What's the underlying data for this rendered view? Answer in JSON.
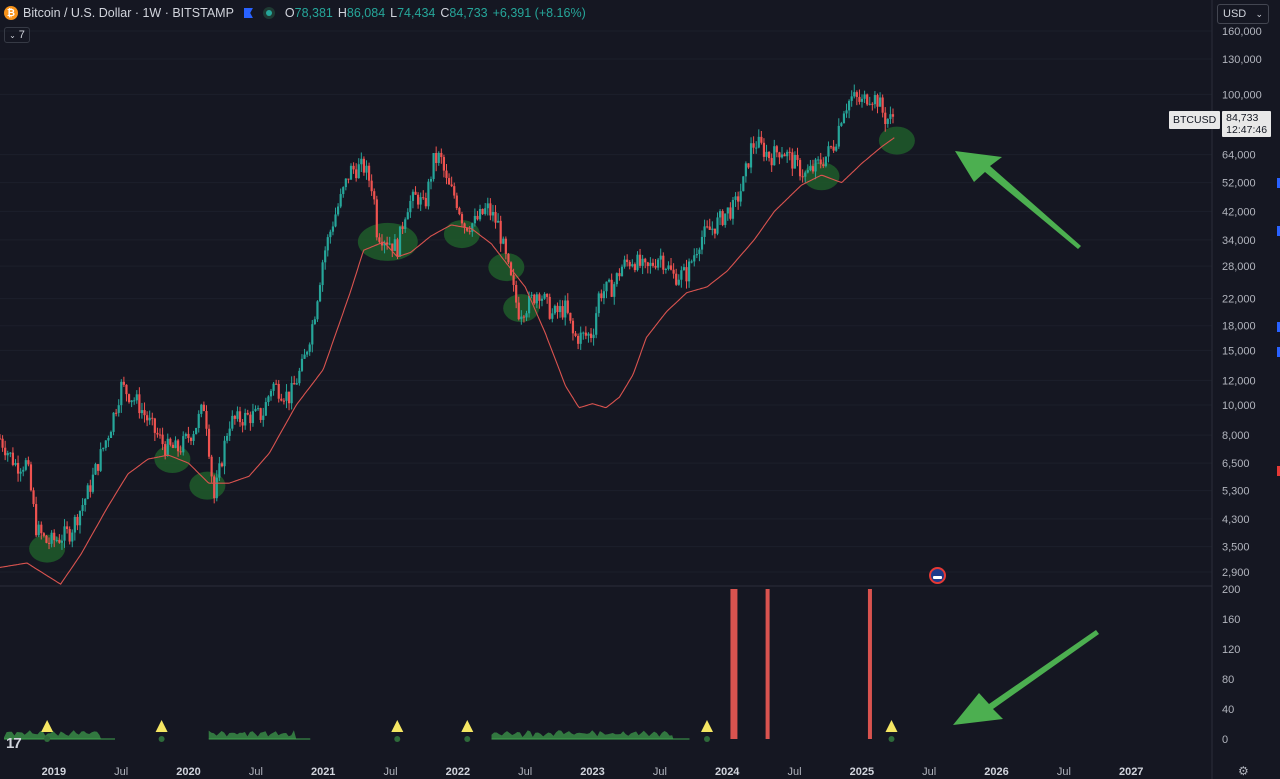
{
  "header": {
    "symbol_icon": "bitcoin-icon",
    "title": "Bitcoin / U.S. Dollar · 1W · BITSTAMP",
    "open_label": "O",
    "open": "78,381",
    "high_label": "H",
    "high": "86,084",
    "low_label": "L",
    "low": "74,434",
    "close_label": "C",
    "close": "84,733",
    "change": "+6,391 (+8.16%)"
  },
  "indicator_toggle": {
    "count": "7",
    "icon": "chevron-down-icon"
  },
  "currency_button": {
    "label": "USD",
    "icon": "chevron-down-icon"
  },
  "last_price_tag": {
    "symbol": "BTCUSD",
    "price": "84,733",
    "countdown": "12:47:46"
  },
  "colors": {
    "background": "#151722",
    "up": "#26a69a",
    "down": "#ef5350",
    "ma": "#d9534f",
    "highlight": "#1f5c2a",
    "arrow": "#4caf50",
    "marker": "#f5e663",
    "spike": "#d9534f",
    "osc": "#3fa34d"
  },
  "chart_data": [
    {
      "type": "candlestick",
      "title": "Bitcoin / U.S. Dollar · 1W · BITSTAMP",
      "y_scale": "log",
      "ylim": [
        2600,
        175000
      ],
      "y_ticks": [
        2900,
        3500,
        4300,
        5300,
        6500,
        8000,
        10000,
        12000,
        15000,
        18000,
        22000,
        28000,
        34000,
        42000,
        52000,
        64000,
        100000,
        130000,
        160000
      ],
      "y_tick_labels": [
        "2,900",
        "3,500",
        "4,300",
        "5,300",
        "6,500",
        "8,000",
        "10,000",
        "12,000",
        "15,000",
        "18,000",
        "22,000",
        "28,000",
        "34,000",
        "42,000",
        "52,000",
        "64,000",
        "100,000",
        "130,000",
        "160,000"
      ],
      "x_ticks": [
        "2019",
        "Jul",
        "2020",
        "Jul",
        "2021",
        "Jul",
        "2022",
        "Jul",
        "2023",
        "Jul",
        "2024",
        "Jul",
        "2025",
        "Jul",
        "2026",
        "Jul",
        "2027"
      ],
      "x_year_flags": [
        true,
        false,
        true,
        false,
        true,
        false,
        true,
        false,
        true,
        false,
        true,
        false,
        true,
        false,
        true,
        false,
        true
      ],
      "x_values": [
        2019.0,
        2019.5,
        2020.0,
        2020.5,
        2021.0,
        2021.5,
        2022.0,
        2022.5,
        2023.0,
        2023.5,
        2024.0,
        2024.5,
        2025.0,
        2025.5,
        2026.0,
        2026.5,
        2027.0
      ],
      "xlim": [
        2018.6,
        2027.6
      ],
      "price_anchors": [
        [
          2018.6,
          7800
        ],
        [
          2018.72,
          6400
        ],
        [
          2018.8,
          6500
        ],
        [
          2018.87,
          4000
        ],
        [
          2018.95,
          3600
        ],
        [
          2019.02,
          3700
        ],
        [
          2019.12,
          3900
        ],
        [
          2019.25,
          5200
        ],
        [
          2019.42,
          8500
        ],
        [
          2019.5,
          11500
        ],
        [
          2019.62,
          10200
        ],
        [
          2019.75,
          8200
        ],
        [
          2019.83,
          7300
        ],
        [
          2019.93,
          7200
        ],
        [
          2020.05,
          8500
        ],
        [
          2020.12,
          10100
        ],
        [
          2020.19,
          5000
        ],
        [
          2020.3,
          8800
        ],
        [
          2020.45,
          9200
        ],
        [
          2020.55,
          9300
        ],
        [
          2020.62,
          11700
        ],
        [
          2020.75,
          10600
        ],
        [
          2020.85,
          13500
        ],
        [
          2020.93,
          19000
        ],
        [
          2021.0,
          30000
        ],
        [
          2021.08,
          40000
        ],
        [
          2021.13,
          46000
        ],
        [
          2021.2,
          57000
        ],
        [
          2021.3,
          58500
        ],
        [
          2021.37,
          50000
        ],
        [
          2021.4,
          36000
        ],
        [
          2021.48,
          34000
        ],
        [
          2021.55,
          32000
        ],
        [
          2021.62,
          44000
        ],
        [
          2021.7,
          47000
        ],
        [
          2021.75,
          43000
        ],
        [
          2021.82,
          61000
        ],
        [
          2021.87,
          63000
        ],
        [
          2021.92,
          51000
        ],
        [
          2021.98,
          47000
        ],
        [
          2022.05,
          38000
        ],
        [
          2022.12,
          38500
        ],
        [
          2022.22,
          43000
        ],
        [
          2022.3,
          38000
        ],
        [
          2022.36,
          29000
        ],
        [
          2022.45,
          20000
        ],
        [
          2022.52,
          21000
        ],
        [
          2022.6,
          23500
        ],
        [
          2022.7,
          19500
        ],
        [
          2022.8,
          20500
        ],
        [
          2022.86,
          16500
        ],
        [
          2022.95,
          16700
        ],
        [
          2023.0,
          17000
        ],
        [
          2023.05,
          23000
        ],
        [
          2023.15,
          24000
        ],
        [
          2023.22,
          28000
        ],
        [
          2023.3,
          29500
        ],
        [
          2023.4,
          27000
        ],
        [
          2023.5,
          30500
        ],
        [
          2023.6,
          26000
        ],
        [
          2023.7,
          26500
        ],
        [
          2023.8,
          34500
        ],
        [
          2023.9,
          37500
        ],
        [
          2024.0,
          42000
        ],
        [
          2024.05,
          43000
        ],
        [
          2024.12,
          52000
        ],
        [
          2024.18,
          68000
        ],
        [
          2024.22,
          70000
        ],
        [
          2024.32,
          63000
        ],
        [
          2024.4,
          67000
        ],
        [
          2024.5,
          60000
        ],
        [
          2024.58,
          55000
        ],
        [
          2024.65,
          58000
        ],
        [
          2024.73,
          63000
        ],
        [
          2024.8,
          70000
        ],
        [
          2024.86,
          90000
        ],
        [
          2024.93,
          98000
        ],
        [
          2025.0,
          94000
        ],
        [
          2025.05,
          100000
        ],
        [
          2025.12,
          96000
        ],
        [
          2025.17,
          84000
        ],
        [
          2025.22,
          83000
        ],
        [
          2025.25,
          84733
        ]
      ],
      "ma_anchors": [
        [
          2018.6,
          3000
        ],
        [
          2018.8,
          3100
        ],
        [
          2019.05,
          2650
        ],
        [
          2019.2,
          3300
        ],
        [
          2019.4,
          4700
        ],
        [
          2019.55,
          6000
        ],
        [
          2019.7,
          6700
        ],
        [
          2019.85,
          6900
        ],
        [
          2020.0,
          6500
        ],
        [
          2020.15,
          5600
        ],
        [
          2020.3,
          5600
        ],
        [
          2020.45,
          5900
        ],
        [
          2020.6,
          7000
        ],
        [
          2020.8,
          10000
        ],
        [
          2021.0,
          13000
        ],
        [
          2021.2,
          23000
        ],
        [
          2021.3,
          31500
        ],
        [
          2021.45,
          33500
        ],
        [
          2021.55,
          30000
        ],
        [
          2021.65,
          31000
        ],
        [
          2021.8,
          35000
        ],
        [
          2021.95,
          38000
        ],
        [
          2022.1,
          37000
        ],
        [
          2022.25,
          33000
        ],
        [
          2022.35,
          29000
        ],
        [
          2022.5,
          24000
        ],
        [
          2022.65,
          17000
        ],
        [
          2022.8,
          11500
        ],
        [
          2022.9,
          9800
        ],
        [
          2023.0,
          10100
        ],
        [
          2023.1,
          9800
        ],
        [
          2023.2,
          10600
        ],
        [
          2023.3,
          12500
        ],
        [
          2023.4,
          16500
        ],
        [
          2023.55,
          20000
        ],
        [
          2023.7,
          23000
        ],
        [
          2023.85,
          24000
        ],
        [
          2024.0,
          27000
        ],
        [
          2024.2,
          34000
        ],
        [
          2024.35,
          42000
        ],
        [
          2024.55,
          51000
        ],
        [
          2024.7,
          55000
        ],
        [
          2024.85,
          52000
        ],
        [
          2025.0,
          60000
        ],
        [
          2025.15,
          68000
        ],
        [
          2025.25,
          73000
        ]
      ],
      "highlights": [
        [
          2018.95,
          3450
        ],
        [
          2019.88,
          6700
        ],
        [
          2020.14,
          5500
        ],
        [
          2021.48,
          33500
        ],
        [
          2022.03,
          35500
        ],
        [
          2022.36,
          27800
        ],
        [
          2022.47,
          20500
        ],
        [
          2024.7,
          54500
        ],
        [
          2025.26,
          71000
        ]
      ]
    },
    {
      "type": "histogram",
      "ylim": [
        -20,
        200
      ],
      "y_ticks": [
        0,
        40,
        80,
        120,
        160,
        200
      ],
      "y_tick_labels": [
        "0",
        "40",
        "80",
        "120",
        "160",
        "200"
      ],
      "spikes": [
        [
          2024.05,
          200
        ],
        [
          2024.3,
          200
        ],
        [
          2025.06,
          200
        ]
      ],
      "markers": [
        2018.95,
        2019.8,
        2021.55,
        2022.07,
        2023.85,
        2025.22
      ],
      "osc_ranges": [
        [
          2018.63,
          2019.35
        ],
        [
          2020.15,
          2020.8
        ],
        [
          2022.25,
          2023.6
        ]
      ]
    }
  ]
}
